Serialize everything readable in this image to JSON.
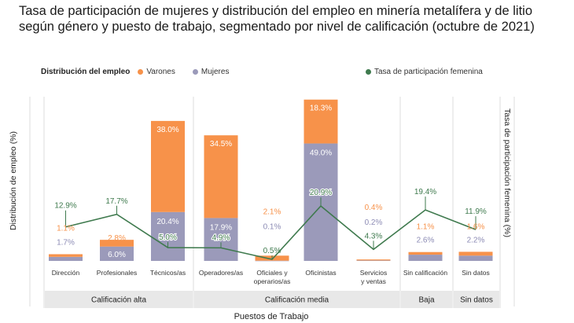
{
  "chart_data": {
    "type": "bar",
    "subtype": "stacked-bar-with-line",
    "title": "Tasa de participación de mujeres y distribución del empleo en minería metalífera y de litio según género y puesto de trabajo, segmentado por nivel de calificación (octubre de 2021)",
    "legend_title": "Distribución del empleo",
    "xlabel": "Puestos de Trabajo",
    "ylabel": "Distribución de empleo (%)",
    "ylabel_right": "Tasa de participación femenina (%)",
    "categories": [
      "Dirección",
      "Profesionales",
      "Técnicos/as",
      "Operadores/as",
      "Oficiales y operarios/as",
      "Oficinistas",
      "Servicios y ventas",
      "Sin calificación",
      "Sin datos"
    ],
    "category_lines": [
      [
        "Dirección"
      ],
      [
        "Profesionales"
      ],
      [
        "Técnicos/as"
      ],
      [
        "Operadores/as"
      ],
      [
        "Oficiales y",
        "operarios/as"
      ],
      [
        "Oficinistas"
      ],
      [
        "Servicios",
        "y ventas"
      ],
      [
        "Sin calificación"
      ],
      [
        "Sin datos"
      ]
    ],
    "series": [
      {
        "name": "Mujeres",
        "kind": "bar",
        "color": "#9b9aba",
        "values": [
          1.7,
          6.0,
          20.4,
          17.9,
          0.1,
          49.0,
          0.2,
          2.6,
          2.2
        ],
        "labels": [
          "1.7%",
          "6.0%",
          "20.4%",
          "17.9%",
          "0.1%",
          "49.0%",
          "0.2%",
          "2.6%",
          "2.2%"
        ]
      },
      {
        "name": "Varones",
        "kind": "bar",
        "color": "#f7924a",
        "values": [
          1.1,
          2.8,
          38.0,
          34.5,
          2.1,
          18.3,
          0.4,
          1.1,
          1.6
        ],
        "labels": [
          "1.1%",
          "2.8%",
          "38.0%",
          "34.5%",
          "2.1%",
          "18.3%",
          "0.4%",
          "1.1%",
          "1.6%"
        ]
      },
      {
        "name": "Tasa de participación femenina",
        "kind": "line",
        "color": "#3f7a4e",
        "values": [
          12.9,
          17.7,
          5.0,
          4.9,
          0.5,
          20.9,
          4.3,
          19.4,
          11.9
        ],
        "labels": [
          "12.9%",
          "17.7%",
          "5.0%",
          "4.9%",
          "0.5%",
          "20.9%",
          "4.3%",
          "19.4%",
          "11.9%"
        ]
      }
    ],
    "groups": [
      {
        "label": "Calificación alta",
        "categories": [
          "Dirección",
          "Profesionales",
          "Técnicos/as"
        ]
      },
      {
        "label": "Calificación media",
        "categories": [
          "Operadores/as",
          "Oficiales y operarios/as",
          "Oficinistas",
          "Servicios y ventas"
        ]
      },
      {
        "label": "Baja",
        "categories": [
          "Sin calificación"
        ]
      },
      {
        "label": "Sin datos",
        "categories": [
          "Sin datos"
        ]
      }
    ],
    "grid": false,
    "legend_position": "top"
  }
}
